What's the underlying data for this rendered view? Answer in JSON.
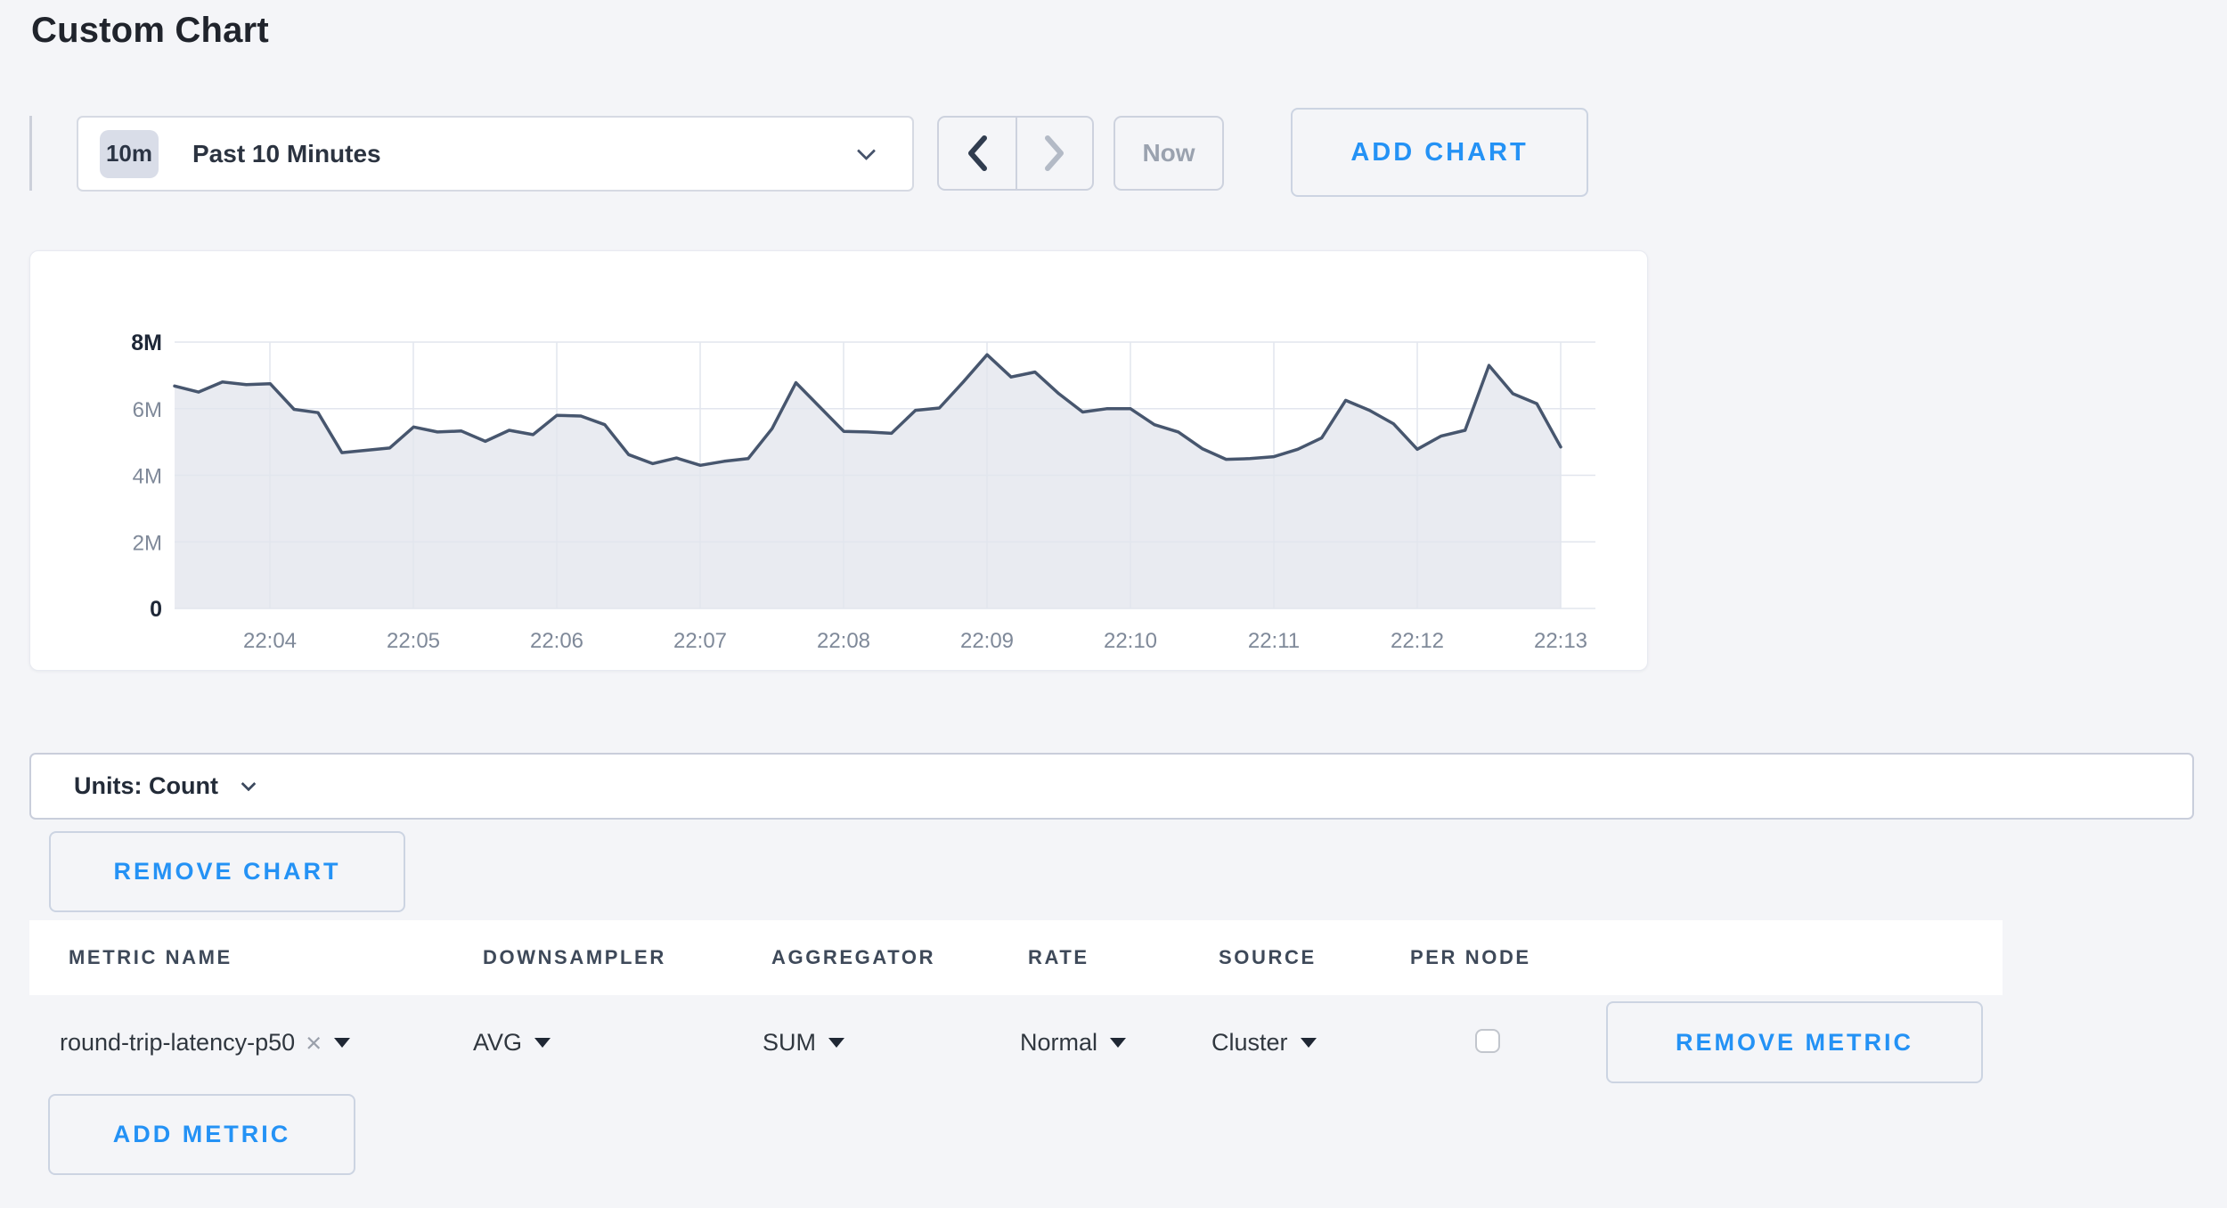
{
  "page": {
    "title": "Custom Chart",
    "background": "#f4f5f8",
    "accent_blue": "#2492f5"
  },
  "toolbar": {
    "time_badge": "10m",
    "time_label": "Past 10 Minutes",
    "now_label": "Now",
    "add_chart_label": "ADD CHART",
    "prev_enabled": true,
    "next_enabled": false
  },
  "icons": {
    "time_dropdown": "chevron-down-icon",
    "prev": "chevron-left-icon",
    "next": "chevron-right-icon",
    "units_dropdown": "chevron-down-icon",
    "select_caret": "triangle-down-icon",
    "metric_clear": "close-icon"
  },
  "chart_data": {
    "type": "area",
    "title": "",
    "xlabel": "",
    "ylabel": "",
    "x_start": "22:03:20",
    "x_interval_seconds": 10,
    "values_millions": [
      6.68,
      6.5,
      6.8,
      6.72,
      6.75,
      5.98,
      5.88,
      4.68,
      4.75,
      4.82,
      5.45,
      5.3,
      5.33,
      5.02,
      5.35,
      5.22,
      5.8,
      5.78,
      5.52,
      4.62,
      4.35,
      4.52,
      4.3,
      4.42,
      4.5,
      5.4,
      6.78,
      6.05,
      5.32,
      5.3,
      5.26,
      5.95,
      6.02,
      6.8,
      7.62,
      6.95,
      7.1,
      6.45,
      5.9,
      6.0,
      6.0,
      5.52,
      5.3,
      4.8,
      4.48,
      4.5,
      4.56,
      4.78,
      5.12,
      6.25,
      5.95,
      5.55,
      4.78,
      5.18,
      5.35,
      7.3,
      6.45,
      6.15,
      4.85
    ],
    "x_ticks": [
      "22:04",
      "22:05",
      "22:06",
      "22:07",
      "22:08",
      "22:09",
      "22:10",
      "22:11",
      "22:12",
      "22:13"
    ],
    "y_ticks": [
      "8M",
      "6M",
      "4M",
      "2M",
      "0"
    ],
    "ylim_millions": [
      0,
      8
    ],
    "grid": true,
    "legend": "none",
    "line_color": "#47566e",
    "fill_color": "#e9ebf1",
    "grid_color": "#e2e6ee"
  },
  "units_bar": {
    "label": "Units: Count"
  },
  "buttons": {
    "remove_chart": "REMOVE CHART",
    "add_metric": "ADD METRIC",
    "remove_metric": "REMOVE METRIC"
  },
  "metrics_table": {
    "headers": [
      "METRIC NAME",
      "DOWNSAMPLER",
      "AGGREGATOR",
      "RATE",
      "SOURCE",
      "PER NODE"
    ],
    "row": {
      "metric_name": "round-trip-latency-p50",
      "downsampler": "AVG",
      "aggregator": "SUM",
      "rate": "Normal",
      "source": "Cluster",
      "per_node_checked": false
    }
  }
}
